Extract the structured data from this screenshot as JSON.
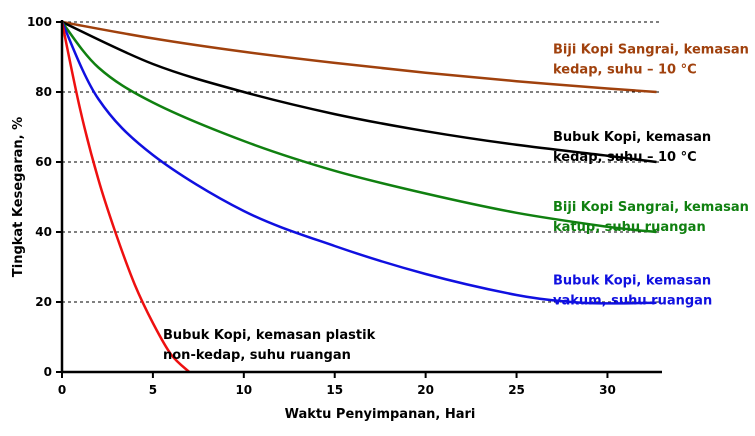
{
  "chart_data": {
    "type": "line",
    "title": "",
    "xlabel": "Waktu Penyimpanan, Hari",
    "ylabel": "Tingkat Kesegaran, %",
    "xlim": [
      0,
      33
    ],
    "ylim": [
      0,
      100
    ],
    "x_ticks": [
      0,
      5,
      10,
      15,
      20,
      25,
      30
    ],
    "y_ticks": [
      0,
      20,
      40,
      60,
      80,
      100
    ],
    "grid": "horizontal dashed at y ticks",
    "legend": "inline labels to the right of each curve",
    "series": [
      {
        "label_lines": [
          "Biji Kopi Sangrai, kemasan",
          "kedap, suhu – 10 °C"
        ],
        "color": "#a0410d",
        "label_y": 91,
        "x": [
          0,
          5,
          10,
          15,
          20,
          25,
          30,
          32.7
        ],
        "y": [
          100,
          95.3,
          91.5,
          88.3,
          85.5,
          83.1,
          81,
          80
        ]
      },
      {
        "label_lines": [
          "Bubuk Kopi, kemasan",
          "kedap, suhu – 10 °C"
        ],
        "color": "#000000",
        "label_y": 66,
        "x": [
          0,
          5,
          10,
          15,
          20,
          25,
          30,
          32.7
        ],
        "y": [
          100,
          88,
          80,
          73.7,
          68.8,
          64.9,
          61.8,
          60
        ]
      },
      {
        "label_lines": [
          "Biji Kopi Sangrai,  kemasan",
          "katup, suhu ruangan"
        ],
        "color": "#108010",
        "label_y": 46,
        "x": [
          0,
          2,
          5,
          10,
          15,
          20,
          25,
          30,
          32.7
        ],
        "y": [
          100,
          87,
          77,
          66,
          57.5,
          51,
          45.5,
          41.5,
          40
        ]
      },
      {
        "label_lines": [
          "Bubuk Kopi, kemasan",
          "vakum, suhu ruangan"
        ],
        "color": "#1010e0",
        "label_y": 25,
        "x": [
          0,
          2,
          5,
          10,
          15,
          20,
          25,
          28,
          30,
          32.7
        ],
        "y": [
          100,
          78,
          62,
          46,
          36,
          28,
          22,
          20,
          19.6,
          19.8
        ]
      },
      {
        "label_lines": [
          "Bubuk Kopi, kemasan plastik",
          "non-kedap, suhu ruangan"
        ],
        "color": "#ee1010",
        "label_y": 9.5,
        "x": [
          0,
          1,
          2,
          3,
          4,
          5,
          6,
          7
        ],
        "y": [
          100,
          75,
          55,
          39,
          25,
          14,
          5,
          0
        ]
      }
    ]
  }
}
